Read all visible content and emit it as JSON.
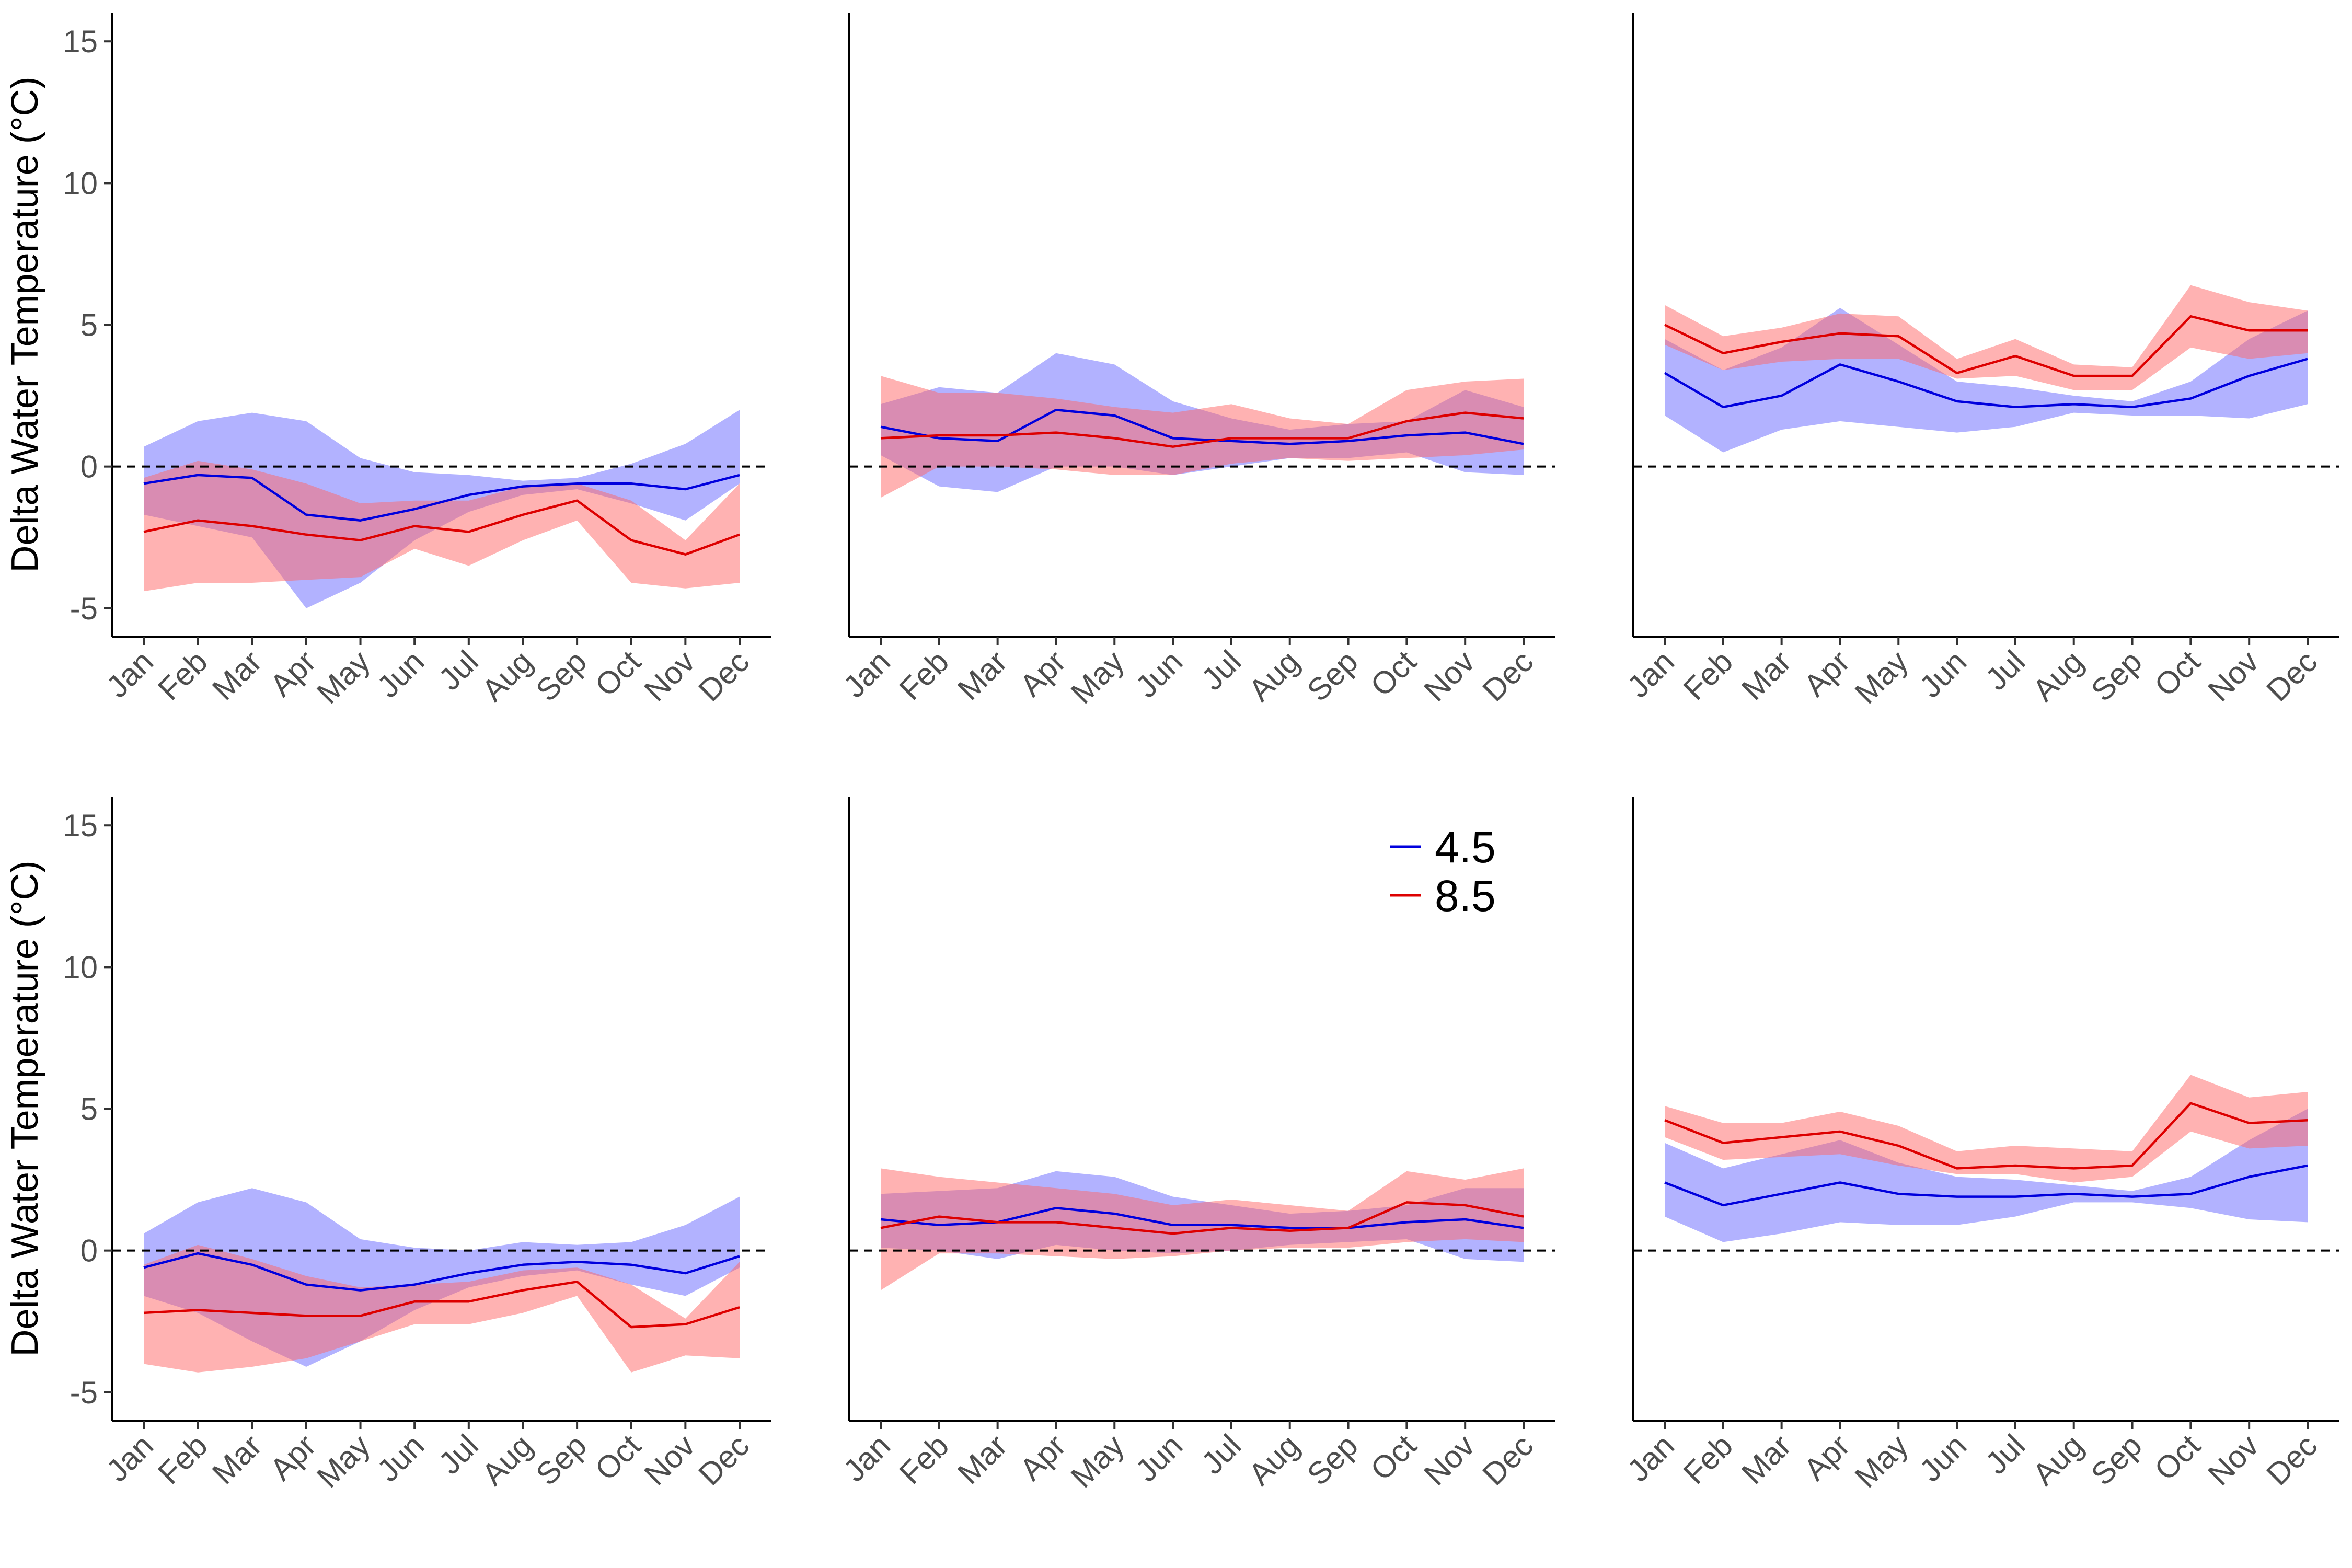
{
  "ylabel": "Delta Water Temperature (°C)",
  "months": [
    "Jan",
    "Feb",
    "Mar",
    "Apr",
    "May",
    "Jun",
    "Jul",
    "Aug",
    "Sep",
    "Oct",
    "Nov",
    "Dec"
  ],
  "y_ticks": [
    -5,
    0,
    5,
    10,
    15
  ],
  "colors": {
    "s45": "#0000dd",
    "s85": "#dd0000",
    "band45": "#6666ff",
    "band85": "#ff6666"
  },
  "legend": [
    {
      "key": "s45",
      "label": "4.5"
    },
    {
      "key": "s85",
      "label": "8.5"
    }
  ],
  "chart_data": [
    {
      "type": "line",
      "panel": "row1-col1",
      "ylim": [
        -6,
        16
      ],
      "series": [
        {
          "name": "4.5",
          "values": [
            -0.6,
            -0.3,
            -0.4,
            -1.7,
            -1.9,
            -1.5,
            -1.0,
            -0.7,
            -0.6,
            -0.6,
            -0.8,
            -0.3
          ],
          "lower": [
            -1.7,
            -2.1,
            -2.5,
            -5.0,
            -4.1,
            -2.6,
            -1.6,
            -1.0,
            -0.8,
            -1.3,
            -1.9,
            -0.6
          ],
          "upper": [
            0.7,
            1.6,
            1.9,
            1.6,
            0.3,
            -0.2,
            -0.3,
            -0.5,
            -0.4,
            0.1,
            0.8,
            2.0
          ]
        },
        {
          "name": "8.5",
          "values": [
            -2.3,
            -1.9,
            -2.1,
            -2.4,
            -2.6,
            -2.1,
            -2.3,
            -1.7,
            -1.2,
            -2.6,
            -3.1,
            -2.4
          ],
          "lower": [
            -4.4,
            -4.1,
            -4.1,
            -4.0,
            -3.9,
            -2.9,
            -3.5,
            -2.6,
            -1.9,
            -4.1,
            -4.3,
            -4.1
          ],
          "upper": [
            -0.4,
            0.2,
            -0.1,
            -0.6,
            -1.3,
            -1.2,
            -1.2,
            -0.7,
            -0.6,
            -1.2,
            -2.6,
            -0.6
          ]
        }
      ]
    },
    {
      "type": "line",
      "panel": "row1-col2",
      "ylim": [
        -6,
        16
      ],
      "series": [
        {
          "name": "4.5",
          "values": [
            1.4,
            1.0,
            0.9,
            2.0,
            1.8,
            1.0,
            0.9,
            0.8,
            0.9,
            1.1,
            1.2,
            0.8
          ],
          "lower": [
            0.4,
            -0.7,
            -0.9,
            0.0,
            0.0,
            -0.3,
            0.0,
            0.3,
            0.3,
            0.5,
            -0.2,
            -0.3
          ],
          "upper": [
            2.2,
            2.8,
            2.6,
            4.0,
            3.6,
            2.3,
            1.7,
            1.3,
            1.5,
            1.6,
            2.7,
            2.1
          ]
        },
        {
          "name": "8.5",
          "values": [
            1.0,
            1.1,
            1.1,
            1.2,
            1.0,
            0.7,
            1.0,
            1.0,
            1.0,
            1.6,
            1.9,
            1.7
          ],
          "lower": [
            -1.1,
            0.0,
            0.0,
            -0.1,
            -0.3,
            -0.3,
            0.1,
            0.3,
            0.2,
            0.3,
            0.4,
            0.6
          ],
          "upper": [
            3.2,
            2.6,
            2.6,
            2.4,
            2.1,
            1.9,
            2.2,
            1.7,
            1.5,
            2.7,
            3.0,
            3.1
          ]
        }
      ]
    },
    {
      "type": "line",
      "panel": "row1-col3",
      "ylim": [
        -6,
        16
      ],
      "series": [
        {
          "name": "4.5",
          "values": [
            3.3,
            2.1,
            2.5,
            3.6,
            3.0,
            2.3,
            2.1,
            2.2,
            2.1,
            2.4,
            3.2,
            3.8
          ],
          "lower": [
            1.8,
            0.5,
            1.3,
            1.6,
            1.4,
            1.2,
            1.4,
            1.9,
            1.8,
            1.8,
            1.7,
            2.2
          ],
          "upper": [
            4.5,
            3.4,
            4.2,
            5.6,
            4.3,
            3.0,
            2.8,
            2.5,
            2.3,
            3.0,
            4.5,
            5.5
          ]
        },
        {
          "name": "8.5",
          "values": [
            5.0,
            4.0,
            4.4,
            4.7,
            4.6,
            3.3,
            3.9,
            3.2,
            3.2,
            5.3,
            4.8,
            4.8
          ],
          "lower": [
            4.3,
            3.4,
            3.7,
            3.8,
            3.8,
            3.1,
            3.2,
            2.7,
            2.7,
            4.2,
            3.8,
            4.0
          ],
          "upper": [
            5.7,
            4.6,
            4.9,
            5.4,
            5.3,
            3.8,
            4.5,
            3.6,
            3.5,
            6.4,
            5.8,
            5.5
          ]
        }
      ]
    },
    {
      "type": "line",
      "panel": "row2-col1",
      "ylim": [
        -6,
        16
      ],
      "series": [
        {
          "name": "4.5",
          "values": [
            -0.6,
            -0.1,
            -0.5,
            -1.2,
            -1.4,
            -1.2,
            -0.8,
            -0.5,
            -0.4,
            -0.5,
            -0.8,
            -0.2
          ],
          "lower": [
            -1.6,
            -2.2,
            -3.2,
            -4.1,
            -3.2,
            -2.1,
            -1.3,
            -0.9,
            -0.7,
            -1.2,
            -1.6,
            -0.6
          ],
          "upper": [
            0.6,
            1.7,
            2.2,
            1.7,
            0.4,
            0.1,
            0.0,
            0.3,
            0.2,
            0.3,
            0.9,
            1.9
          ]
        },
        {
          "name": "8.5",
          "values": [
            -2.2,
            -2.1,
            -2.2,
            -2.3,
            -2.3,
            -1.8,
            -1.8,
            -1.4,
            -1.1,
            -2.7,
            -2.6,
            -2.0
          ],
          "lower": [
            -4.0,
            -4.3,
            -4.1,
            -3.8,
            -3.2,
            -2.6,
            -2.6,
            -2.2,
            -1.6,
            -4.3,
            -3.7,
            -3.8
          ],
          "upper": [
            -0.5,
            0.2,
            -0.3,
            -0.9,
            -1.3,
            -1.2,
            -1.1,
            -0.7,
            -0.6,
            -1.2,
            -2.4,
            -0.4
          ]
        }
      ]
    },
    {
      "type": "line",
      "panel": "row2-col2",
      "ylim": [
        -6,
        16
      ],
      "series": [
        {
          "name": "4.5",
          "values": [
            1.1,
            0.9,
            1.0,
            1.5,
            1.3,
            0.9,
            0.9,
            0.8,
            0.8,
            1.0,
            1.1,
            0.8
          ],
          "lower": [
            0.1,
            0.0,
            -0.3,
            0.2,
            0.0,
            -0.1,
            0.0,
            0.2,
            0.3,
            0.4,
            -0.3,
            -0.4
          ],
          "upper": [
            2.0,
            2.1,
            2.2,
            2.8,
            2.6,
            1.9,
            1.6,
            1.3,
            1.4,
            1.6,
            2.2,
            2.2
          ]
        },
        {
          "name": "8.5",
          "values": [
            0.8,
            1.2,
            1.0,
            1.0,
            0.8,
            0.6,
            0.8,
            0.7,
            0.8,
            1.7,
            1.6,
            1.2
          ],
          "lower": [
            -1.4,
            -0.1,
            -0.1,
            -0.2,
            -0.3,
            -0.2,
            0.0,
            0.1,
            0.1,
            0.3,
            0.4,
            0.3
          ],
          "upper": [
            2.9,
            2.6,
            2.4,
            2.2,
            2.0,
            1.6,
            1.8,
            1.6,
            1.4,
            2.8,
            2.5,
            2.9
          ]
        }
      ]
    },
    {
      "type": "line",
      "panel": "row2-col3",
      "ylim": [
        -6,
        16
      ],
      "series": [
        {
          "name": "4.5",
          "values": [
            2.4,
            1.6,
            2.0,
            2.4,
            2.0,
            1.9,
            1.9,
            2.0,
            1.9,
            2.0,
            2.6,
            3.0
          ],
          "lower": [
            1.2,
            0.3,
            0.6,
            1.0,
            0.9,
            0.9,
            1.2,
            1.7,
            1.7,
            1.5,
            1.1,
            1.0
          ],
          "upper": [
            3.8,
            2.9,
            3.4,
            3.9,
            3.1,
            2.6,
            2.5,
            2.3,
            2.1,
            2.6,
            3.9,
            5.0
          ]
        },
        {
          "name": "8.5",
          "values": [
            4.6,
            3.8,
            4.0,
            4.2,
            3.7,
            2.9,
            3.0,
            2.9,
            3.0,
            5.2,
            4.5,
            4.6
          ],
          "lower": [
            4.0,
            3.2,
            3.3,
            3.4,
            3.0,
            2.7,
            2.7,
            2.4,
            2.6,
            4.2,
            3.6,
            3.7
          ],
          "upper": [
            5.1,
            4.5,
            4.5,
            4.9,
            4.4,
            3.5,
            3.7,
            3.6,
            3.5,
            6.2,
            5.4,
            5.6
          ]
        }
      ]
    }
  ]
}
